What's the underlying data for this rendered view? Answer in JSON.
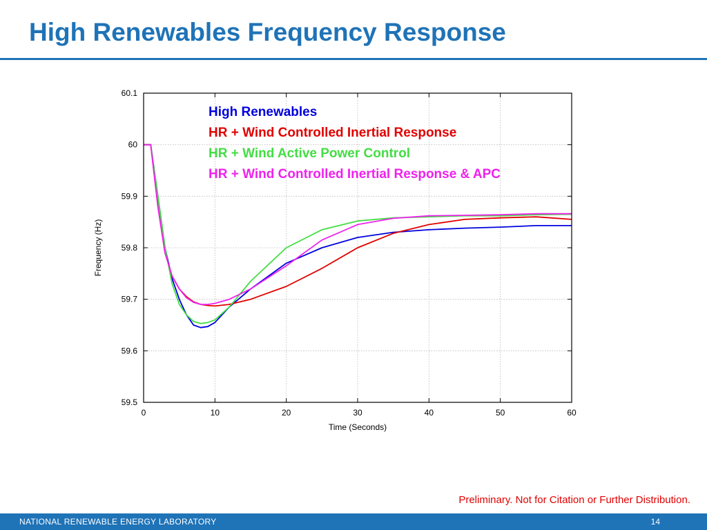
{
  "slide": {
    "title": "High Renewables Frequency Response",
    "disclaimer": "Preliminary.  Not for Citation or Further Distribution.",
    "footer_org": "NATIONAL RENEWABLE ENERGY LABORATORY",
    "page_number": "14"
  },
  "colors": {
    "title": "#1f73b7",
    "footer_bar": "#1f73b7",
    "disclaimer": "#e00000"
  },
  "chart_data": {
    "type": "line",
    "title": "",
    "xlabel": "Time (Seconds)",
    "ylabel": "Frequency (Hz)",
    "xlim": [
      0,
      60
    ],
    "ylim": [
      59.5,
      60.1
    ],
    "xticks": [
      0,
      10,
      20,
      30,
      40,
      50,
      60
    ],
    "xtick_labels": [
      "0",
      "10",
      "20",
      "30",
      "40",
      "50",
      "60"
    ],
    "yticks": [
      59.5,
      59.6,
      59.7,
      59.8,
      59.9,
      60,
      60.1
    ],
    "ytick_labels": [
      "59.5",
      "59.6",
      "59.7",
      "59.8",
      "59.9",
      "60",
      "60.1"
    ],
    "grid": true,
    "legend_position": "top-center",
    "series": [
      {
        "name": "High Renewables",
        "color": "#0000dd",
        "x": [
          0,
          1,
          2,
          3,
          4,
          5,
          6,
          7,
          8,
          9,
          10,
          12,
          15,
          20,
          25,
          30,
          35,
          40,
          45,
          50,
          55,
          60
        ],
        "y": [
          60.0,
          60.0,
          59.9,
          59.8,
          59.74,
          59.7,
          59.67,
          59.65,
          59.645,
          59.647,
          59.655,
          59.685,
          59.72,
          59.77,
          59.8,
          59.82,
          59.83,
          59.835,
          59.838,
          59.84,
          59.843,
          59.843
        ]
      },
      {
        "name": "HR + Wind Controlled Inertial Response",
        "color": "#e00000",
        "x": [
          0,
          1,
          2,
          3,
          4,
          5,
          6,
          7,
          8,
          9,
          10,
          12,
          15,
          20,
          25,
          30,
          35,
          40,
          45,
          50,
          55,
          60
        ],
        "y": [
          60.0,
          60.0,
          59.88,
          59.79,
          59.745,
          59.72,
          59.705,
          59.695,
          59.69,
          59.688,
          59.687,
          59.69,
          59.7,
          59.725,
          59.76,
          59.8,
          59.828,
          59.845,
          59.855,
          59.858,
          59.86,
          59.855
        ]
      },
      {
        "name": "HR + Wind Active Power Control",
        "color": "#44dd44",
        "x": [
          0,
          1,
          2,
          3,
          4,
          5,
          6,
          7,
          8,
          9,
          10,
          12,
          15,
          20,
          25,
          30,
          35,
          40,
          45,
          50,
          55,
          60
        ],
        "y": [
          60.0,
          60.0,
          59.9,
          59.8,
          59.73,
          59.69,
          59.67,
          59.657,
          59.653,
          59.655,
          59.66,
          59.685,
          59.735,
          59.8,
          59.835,
          59.852,
          59.858,
          59.86,
          59.862,
          59.862,
          59.864,
          59.865
        ]
      },
      {
        "name": "HR + Wind Controlled Inertial Response & APC",
        "color": "#ee22ee",
        "x": [
          0,
          1,
          2,
          3,
          4,
          5,
          6,
          7,
          8,
          9,
          10,
          12,
          15,
          20,
          25,
          30,
          35,
          40,
          45,
          50,
          55,
          60
        ],
        "y": [
          60.0,
          60.0,
          59.88,
          59.79,
          59.745,
          59.72,
          59.703,
          59.694,
          59.69,
          59.69,
          59.692,
          59.7,
          59.72,
          59.765,
          59.815,
          59.845,
          59.857,
          59.862,
          59.863,
          59.864,
          59.866,
          59.866
        ]
      }
    ]
  }
}
